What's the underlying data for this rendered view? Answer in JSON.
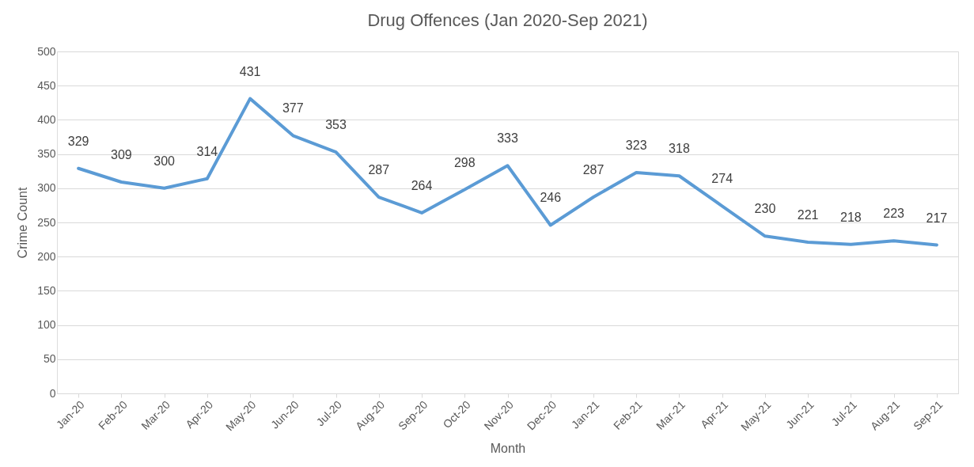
{
  "chart_data": {
    "type": "line",
    "title": "Drug Offences (Jan 2020-Sep 2021)",
    "xlabel": "Month",
    "ylabel": "Crime Count",
    "categories": [
      "Jan-20",
      "Feb-20",
      "Mar-20",
      "Apr-20",
      "May-20",
      "Jun-20",
      "Jul-20",
      "Aug-20",
      "Sep-20",
      "Oct-20",
      "Nov-20",
      "Dec-20",
      "Jan-21",
      "Feb-21",
      "Mar-21",
      "Apr-21",
      "May-21",
      "Jun-21",
      "Jul-21",
      "Aug-21",
      "Sep-21"
    ],
    "series": [
      {
        "color": "#5b9bd5",
        "values": [
          329,
          309,
          300,
          314,
          431,
          377,
          353,
          287,
          264,
          298,
          333,
          246,
          287,
          323,
          318,
          274,
          230,
          221,
          218,
          223,
          217
        ]
      }
    ],
    "ylim": [
      0,
      500
    ],
    "yticks": [
      0,
      50,
      100,
      150,
      200,
      250,
      300,
      350,
      400,
      450,
      500
    ],
    "grid": "y",
    "data_labels": true,
    "marker": "none",
    "line_style": "solid"
  }
}
